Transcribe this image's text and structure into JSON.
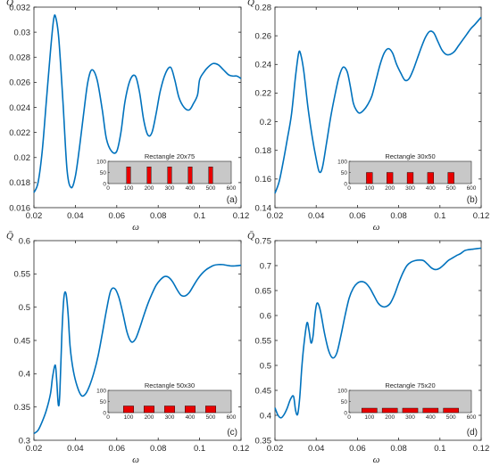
{
  "chart_data": [
    {
      "type": "line",
      "panel_label": "(a)",
      "ylabel": "Q̄",
      "xlabel": "ω",
      "xlim": [
        0.02,
        0.12
      ],
      "ylim": [
        0.016,
        0.032
      ],
      "xticks": [
        "0.02",
        "0.04",
        "0.06",
        "0.08",
        "0.1",
        "0.12"
      ],
      "yticks": [
        "0.016",
        "0.018",
        "0.02",
        "0.022",
        "0.024",
        "0.026",
        "0.028",
        "0.03",
        "0.032"
      ],
      "line_color": "#0072BD",
      "series": [
        {
          "x": [
            0.02,
            0.022,
            0.024,
            0.026,
            0.028,
            0.0295,
            0.0305,
            0.032,
            0.034,
            0.036,
            0.038,
            0.04,
            0.042,
            0.044,
            0.046,
            0.048,
            0.0505,
            0.053,
            0.055,
            0.0575,
            0.06,
            0.062,
            0.064,
            0.0665,
            0.069,
            0.071,
            0.073,
            0.075,
            0.077,
            0.079,
            0.081,
            0.0835,
            0.086,
            0.088,
            0.09,
            0.0925,
            0.095,
            0.097,
            0.099,
            0.1,
            0.102,
            0.104,
            0.1065,
            0.109,
            0.1115,
            0.114,
            0.116,
            0.118,
            0.12
          ],
          "y": [
            0.0172,
            0.018,
            0.0205,
            0.0245,
            0.0285,
            0.031,
            0.0312,
            0.0295,
            0.0245,
            0.019,
            0.0176,
            0.0185,
            0.0208,
            0.0235,
            0.026,
            0.027,
            0.0262,
            0.0238,
            0.0215,
            0.0205,
            0.0205,
            0.022,
            0.0245,
            0.0262,
            0.0265,
            0.0252,
            0.023,
            0.0218,
            0.022,
            0.0235,
            0.0253,
            0.0267,
            0.0272,
            0.0262,
            0.0248,
            0.024,
            0.0238,
            0.0243,
            0.025,
            0.0262,
            0.0268,
            0.0272,
            0.0275,
            0.0274,
            0.027,
            0.0266,
            0.0265,
            0.0265,
            0.0263
          ]
        }
      ],
      "inset": {
        "title": "Rectangle 20x75",
        "xlim": [
          0,
          600
        ],
        "ylim": [
          0,
          100
        ],
        "xticks": [
          "0",
          "100",
          "200",
          "300",
          "400",
          "500",
          "600"
        ],
        "yticks": [
          "0",
          "50",
          "100"
        ],
        "shapes": [
          {
            "x": 100,
            "w": 20,
            "h": 75
          },
          {
            "x": 200,
            "w": 20,
            "h": 75
          },
          {
            "x": 300,
            "w": 20,
            "h": 75
          },
          {
            "x": 400,
            "w": 20,
            "h": 75
          },
          {
            "x": 500,
            "w": 20,
            "h": 75
          }
        ]
      }
    },
    {
      "type": "line",
      "panel_label": "(b)",
      "ylabel": "Q̄",
      "xlabel": "ω",
      "xlim": [
        0.02,
        0.12
      ],
      "ylim": [
        0.14,
        0.28
      ],
      "xticks": [
        "0.02",
        "0.04",
        "0.06",
        "0.08",
        "0.1",
        "0.12"
      ],
      "yticks": [
        "0.14",
        "0.16",
        "0.18",
        "0.2",
        "0.22",
        "0.24",
        "0.26",
        "0.28"
      ],
      "line_color": "#0072BD",
      "series": [
        {
          "x": [
            0.02,
            0.022,
            0.024,
            0.026,
            0.028,
            0.03,
            0.0315,
            0.0325,
            0.034,
            0.036,
            0.038,
            0.04,
            0.0415,
            0.043,
            0.045,
            0.047,
            0.049,
            0.051,
            0.053,
            0.055,
            0.0565,
            0.058,
            0.0595,
            0.061,
            0.063,
            0.065,
            0.067,
            0.069,
            0.071,
            0.073,
            0.075,
            0.077,
            0.079,
            0.081,
            0.083,
            0.085,
            0.087,
            0.089,
            0.091,
            0.093,
            0.095,
            0.097,
            0.099,
            0.101,
            0.103,
            0.105,
            0.107,
            0.109,
            0.111,
            0.113,
            0.115,
            0.117,
            0.12
          ],
          "y": [
            0.15,
            0.158,
            0.172,
            0.188,
            0.205,
            0.232,
            0.248,
            0.247,
            0.235,
            0.21,
            0.19,
            0.174,
            0.165,
            0.168,
            0.185,
            0.203,
            0.218,
            0.231,
            0.238,
            0.235,
            0.225,
            0.213,
            0.208,
            0.206,
            0.208,
            0.212,
            0.218,
            0.229,
            0.24,
            0.248,
            0.251,
            0.248,
            0.24,
            0.234,
            0.229,
            0.23,
            0.236,
            0.244,
            0.252,
            0.259,
            0.263,
            0.262,
            0.256,
            0.25,
            0.247,
            0.247,
            0.249,
            0.253,
            0.257,
            0.261,
            0.265,
            0.268,
            0.273
          ]
        }
      ],
      "inset": {
        "title": "Rectangle 30x50",
        "xlim": [
          0,
          600
        ],
        "ylim": [
          0,
          100
        ],
        "xticks": [
          "0",
          "100",
          "200",
          "300",
          "400",
          "500",
          "600"
        ],
        "yticks": [
          "0",
          "50",
          "100"
        ],
        "shapes": [
          {
            "x": 100,
            "w": 30,
            "h": 50
          },
          {
            "x": 200,
            "w": 30,
            "h": 50
          },
          {
            "x": 300,
            "w": 30,
            "h": 50
          },
          {
            "x": 400,
            "w": 30,
            "h": 50
          },
          {
            "x": 500,
            "w": 30,
            "h": 50
          }
        ]
      }
    },
    {
      "type": "line",
      "panel_label": "(c)",
      "ylabel": "Q̄",
      "xlabel": "ω",
      "xlim": [
        0.02,
        0.12
      ],
      "ylim": [
        0.3,
        0.6
      ],
      "xticks": [
        "0.02",
        "0.04",
        "0.06",
        "0.08",
        "0.1",
        "0.12"
      ],
      "yticks": [
        "0.3",
        "0.35",
        "0.4",
        "0.45",
        "0.5",
        "0.55",
        "0.6"
      ],
      "line_color": "#0072BD",
      "series": [
        {
          "x": [
            0.02,
            0.022,
            0.024,
            0.026,
            0.028,
            0.029,
            0.0303,
            0.031,
            0.0318,
            0.0325,
            0.0335,
            0.0345,
            0.0355,
            0.0365,
            0.0375,
            0.039,
            0.041,
            0.043,
            0.045,
            0.047,
            0.049,
            0.051,
            0.053,
            0.055,
            0.057,
            0.059,
            0.061,
            0.063,
            0.065,
            0.067,
            0.069,
            0.071,
            0.073,
            0.075,
            0.077,
            0.079,
            0.081,
            0.083,
            0.085,
            0.087,
            0.089,
            0.091,
            0.093,
            0.095,
            0.097,
            0.099,
            0.101,
            0.103,
            0.105,
            0.107,
            0.109,
            0.111,
            0.113,
            0.115,
            0.117,
            0.12
          ],
          "y": [
            0.31,
            0.315,
            0.328,
            0.345,
            0.37,
            0.395,
            0.413,
            0.39,
            0.353,
            0.37,
            0.46,
            0.515,
            0.52,
            0.49,
            0.44,
            0.405,
            0.38,
            0.367,
            0.37,
            0.383,
            0.402,
            0.427,
            0.46,
            0.495,
            0.524,
            0.528,
            0.515,
            0.49,
            0.462,
            0.448,
            0.452,
            0.468,
            0.487,
            0.505,
            0.52,
            0.533,
            0.541,
            0.546,
            0.545,
            0.538,
            0.527,
            0.518,
            0.517,
            0.522,
            0.532,
            0.542,
            0.55,
            0.556,
            0.56,
            0.563,
            0.564,
            0.564,
            0.563,
            0.562,
            0.562,
            0.563
          ]
        }
      ],
      "inset": {
        "title": "Rectangle 50x30",
        "xlim": [
          0,
          600
        ],
        "ylim": [
          0,
          100
        ],
        "xticks": [
          "0",
          "100",
          "200",
          "300",
          "400",
          "500",
          "600"
        ],
        "yticks": [
          "0",
          "50",
          "100"
        ],
        "shapes": [
          {
            "x": 100,
            "w": 50,
            "h": 30
          },
          {
            "x": 200,
            "w": 50,
            "h": 30
          },
          {
            "x": 300,
            "w": 50,
            "h": 30
          },
          {
            "x": 400,
            "w": 50,
            "h": 30
          },
          {
            "x": 500,
            "w": 50,
            "h": 30
          }
        ]
      }
    },
    {
      "type": "line",
      "panel_label": "(d)",
      "ylabel": "Q̄",
      "xlabel": "ω",
      "xlim": [
        0.02,
        0.12
      ],
      "ylim": [
        0.35,
        0.75
      ],
      "xticks": [
        "0.02",
        "0.04",
        "0.06",
        "0.08",
        "0.1",
        "0.12"
      ],
      "yticks": [
        "0.35",
        "0.4",
        "0.45",
        "0.5",
        "0.55",
        "0.6",
        "0.65",
        "0.7",
        "0.75"
      ],
      "line_color": "#0072BD",
      "series": [
        {
          "x": [
            0.02,
            0.0215,
            0.023,
            0.0245,
            0.026,
            0.0275,
            0.029,
            0.03,
            0.031,
            0.032,
            0.033,
            0.034,
            0.0355,
            0.0365,
            0.0375,
            0.0385,
            0.0395,
            0.0405,
            0.042,
            0.044,
            0.046,
            0.048,
            0.05,
            0.052,
            0.054,
            0.056,
            0.058,
            0.06,
            0.062,
            0.064,
            0.066,
            0.068,
            0.07,
            0.072,
            0.074,
            0.076,
            0.078,
            0.08,
            0.082,
            0.084,
            0.086,
            0.088,
            0.09,
            0.092,
            0.094,
            0.096,
            0.098,
            0.1,
            0.102,
            0.104,
            0.106,
            0.108,
            0.11,
            0.112,
            0.114,
            0.116,
            0.118,
            0.12
          ],
          "y": [
            0.415,
            0.4,
            0.395,
            0.402,
            0.415,
            0.432,
            0.438,
            0.41,
            0.402,
            0.435,
            0.495,
            0.54,
            0.585,
            0.57,
            0.545,
            0.56,
            0.605,
            0.625,
            0.61,
            0.565,
            0.53,
            0.515,
            0.525,
            0.56,
            0.6,
            0.635,
            0.655,
            0.665,
            0.668,
            0.665,
            0.655,
            0.64,
            0.625,
            0.618,
            0.618,
            0.625,
            0.642,
            0.665,
            0.685,
            0.7,
            0.707,
            0.71,
            0.711,
            0.71,
            0.703,
            0.695,
            0.692,
            0.695,
            0.702,
            0.71,
            0.715,
            0.72,
            0.724,
            0.73,
            0.732,
            0.733,
            0.734,
            0.735
          ]
        }
      ],
      "inset": {
        "title": "Rectangle 75x20",
        "xlim": [
          0,
          600
        ],
        "ylim": [
          0,
          100
        ],
        "xticks": [
          "0",
          "100",
          "200",
          "300",
          "400",
          "500",
          "600"
        ],
        "yticks": [
          "0",
          "50",
          "100"
        ],
        "shapes": [
          {
            "x": 100,
            "w": 75,
            "h": 20
          },
          {
            "x": 200,
            "w": 75,
            "h": 20
          },
          {
            "x": 300,
            "w": 75,
            "h": 20
          },
          {
            "x": 400,
            "w": 75,
            "h": 20
          },
          {
            "x": 500,
            "w": 75,
            "h": 20
          }
        ]
      }
    }
  ],
  "colors": {
    "line": "#0072BD",
    "obstacle_fill": "#E80000",
    "inset_background": "#C8C8C8",
    "axis": "#262626"
  }
}
